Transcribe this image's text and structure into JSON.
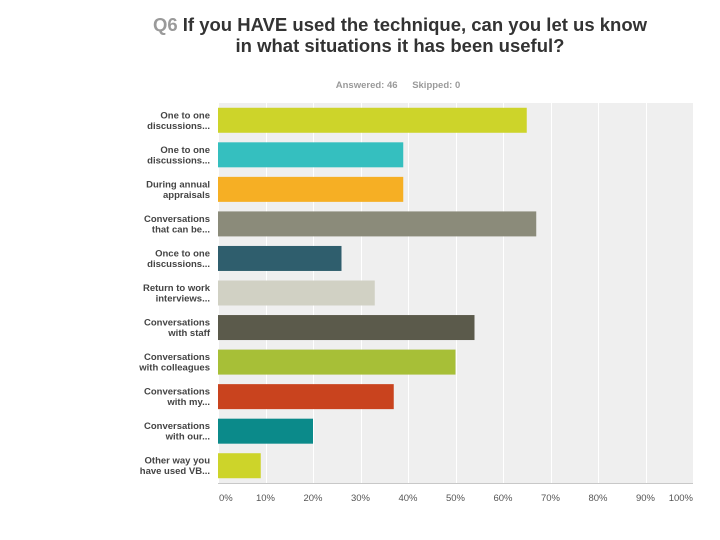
{
  "question": {
    "number": "Q6",
    "text": "If you HAVE used the technique, can you let us know in what situations it has been useful?"
  },
  "stats": {
    "answered": "Answered: 46",
    "skipped": "Skipped: 0"
  },
  "chart_data": {
    "type": "bar",
    "orientation": "horizontal",
    "title": "If you HAVE used the technique, can you let us know in what situations it has been useful?",
    "categories": [
      [
        "One to one",
        "discussions..."
      ],
      [
        "One to one",
        "discussions..."
      ],
      [
        "During annual",
        "appraisals"
      ],
      [
        "Conversations",
        "that can be..."
      ],
      [
        "Once to one",
        "discussions..."
      ],
      [
        "Return to work",
        "interviews..."
      ],
      [
        "Conversations",
        "with staff"
      ],
      [
        "Conversations",
        "with colleagues"
      ],
      [
        "Conversations",
        "with my..."
      ],
      [
        "Conversations",
        "with our..."
      ],
      [
        "Other way you",
        "have used VB..."
      ]
    ],
    "values": [
      65,
      39,
      39,
      67,
      26,
      33,
      54,
      50,
      37,
      20,
      9
    ],
    "colors": [
      "#cdd42a",
      "#35bfbf",
      "#f6af24",
      "#8b8b7a",
      "#2f5e6d",
      "#d1d1c4",
      "#5b5a4b",
      "#a7bf37",
      "#c9431e",
      "#0b8a8a",
      "#cdd42a"
    ],
    "xlim": [
      0,
      100
    ],
    "xticks": [
      "0%",
      "10%",
      "20%",
      "30%",
      "40%",
      "50%",
      "60%",
      "70%",
      "80%",
      "90%",
      "100%"
    ],
    "background": "#efefef",
    "grid": true
  }
}
